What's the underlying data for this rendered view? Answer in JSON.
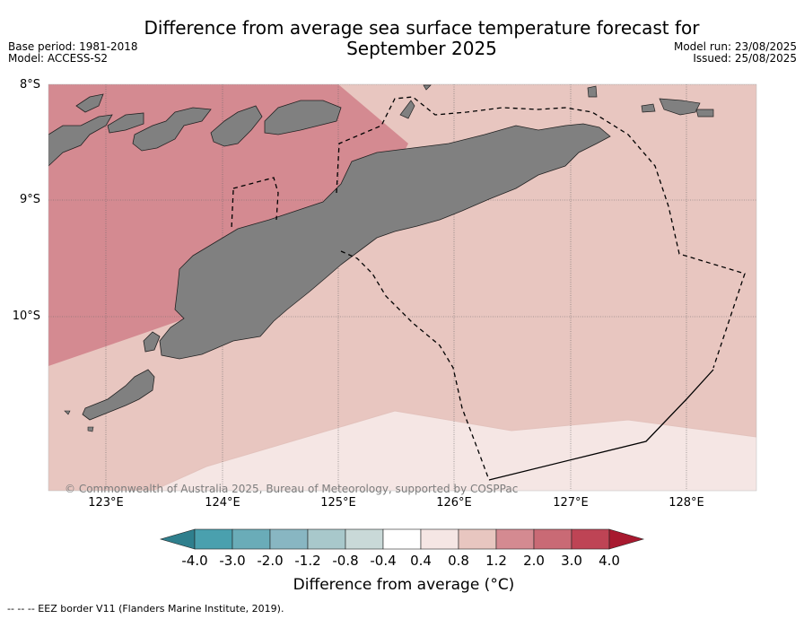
{
  "title": "Difference from average sea surface temperature forecast for September 2025",
  "title_line1": "Difference from average sea surface temperature forecast for",
  "title_line2": "September 2025",
  "base_period": "Base period: 1981-2018",
  "model": "Model: ACCESS-S2",
  "model_run": "Model run: 23/08/2025",
  "issued": "Issued: 25/08/2025",
  "lat_labels": [
    "8°S",
    "9°S",
    "10°S"
  ],
  "lon_labels": [
    "123°E",
    "124°E",
    "125°E",
    "126°E",
    "127°E",
    "128°E"
  ],
  "copyright": "© Commonwealth of Australia 2025, Bureau of Meteorology, supported by COSPPac",
  "colorbar": {
    "title": "Difference from average (°C)",
    "title_main": "Difference from average (",
    "title_unit": "°C)",
    "labels": [
      "-4.0",
      "-3.0",
      "-2.0",
      "-1.2",
      "-0.8",
      "-0.4",
      "0.4",
      "0.8",
      "1.2",
      "2.0",
      "3.0",
      "4.0"
    ],
    "colors": [
      "#2f7f8d",
      "#4aa0ae",
      "#6aacb8",
      "#88b6c2",
      "#a8c8cb",
      "#c9d9d8",
      "#ffffff",
      "#f5e6e4",
      "#e8c6c0",
      "#d48a91",
      "#c96a75",
      "#be4455",
      "#a8192f"
    ]
  },
  "legend_note": "-- -- -- EEZ border V11 (Flanders Marine Institute, 2019).",
  "map_colors": {
    "land": "#808080",
    "band_2_0": "#d48a91",
    "band_1_2": "#e8c6c0",
    "band_0_8": "#f5e6e4"
  }
}
